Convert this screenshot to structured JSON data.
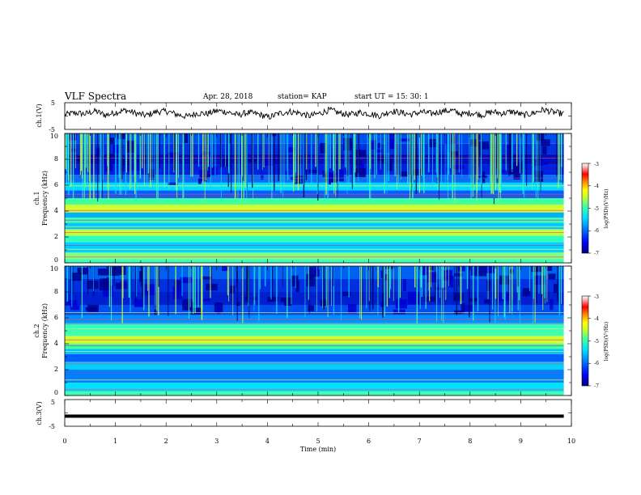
{
  "header": {
    "title": "VLF Spectra",
    "date": "Apr. 28, 2018",
    "station": "station= KAP",
    "start": "start  UT =   15: 30: 1"
  },
  "colors": {
    "spectrogram_scale": [
      "#000080",
      "#0000ff",
      "#0080ff",
      "#00d0ff",
      "#40ffb0",
      "#c0ff40",
      "#ffff00",
      "#ff8000",
      "#ff0000",
      "#ffb0b0",
      "#ffffff"
    ]
  },
  "chart_data": [
    {
      "type": "line",
      "name": "ch1-waveform",
      "ylabel": "ch.1(V)",
      "ylim": [
        -5,
        5
      ],
      "yticks": [
        "5",
        "-5"
      ],
      "x_range_min": [
        0,
        9.85
      ],
      "note_values": "noisy waveform fluctuating mostly between -1 and 2.5 V",
      "y_samples": [
        0.5,
        1.2,
        0.8,
        1.9,
        0.3,
        1.4,
        2.2,
        1.0,
        0.2,
        1.6,
        1.8,
        0.6,
        -0.2,
        1.1,
        0.9,
        2.0,
        1.5,
        0.4,
        1.3,
        0.7,
        -0.5,
        0.9,
        1.7,
        1.2,
        0.0,
        1.0,
        2.3,
        1.1,
        0.5,
        1.4,
        0.8,
        0.1,
        1.9,
        1.3,
        0.6,
        1.5,
        0.9,
        1.8,
        2.1,
        0.7,
        1.2,
        0.4,
        1.6,
        1.0,
        1.7,
        0.3,
        1.1,
        2.4,
        1.4,
        0.8
      ]
    },
    {
      "type": "heatmap",
      "name": "ch1-spectrogram",
      "ylabel": "ch.1",
      "ylabel2": "Frequency (kHz)",
      "ylim": [
        0,
        10
      ],
      "yticks": [
        "0",
        "2",
        "4",
        "6",
        "8",
        "10"
      ],
      "colorbar": {
        "label": "log(PSD)(V²/Hz)",
        "range": [
          -7,
          -3
        ],
        "ticks": [
          "-3",
          "-4",
          "-5",
          "-6",
          "-7"
        ]
      }
    },
    {
      "type": "heatmap",
      "name": "ch2-spectrogram",
      "ylabel": "ch.2",
      "ylabel2": "Frequency (kHz)",
      "ylim": [
        0,
        10
      ],
      "yticks": [
        "0",
        "2",
        "4",
        "6",
        "8",
        "10"
      ],
      "colorbar": {
        "label": "log(PSD)(V²/Hz)",
        "range": [
          -7,
          -3
        ],
        "ticks": [
          "-3",
          "-4",
          "-5",
          "-6",
          "-7"
        ]
      }
    },
    {
      "type": "line",
      "name": "ch3-waveform",
      "ylabel": "ch.3(V)",
      "ylim": [
        -5,
        5
      ],
      "yticks": [
        "5",
        "-5"
      ],
      "constant_value": -1.2,
      "x_range_min": [
        0,
        9.85
      ]
    }
  ],
  "xaxis": {
    "label": "Time (min)",
    "range": [
      0,
      10
    ],
    "ticks": [
      "0",
      "1",
      "2",
      "3",
      "4",
      "5",
      "6",
      "7",
      "8",
      "9",
      "10"
    ]
  }
}
